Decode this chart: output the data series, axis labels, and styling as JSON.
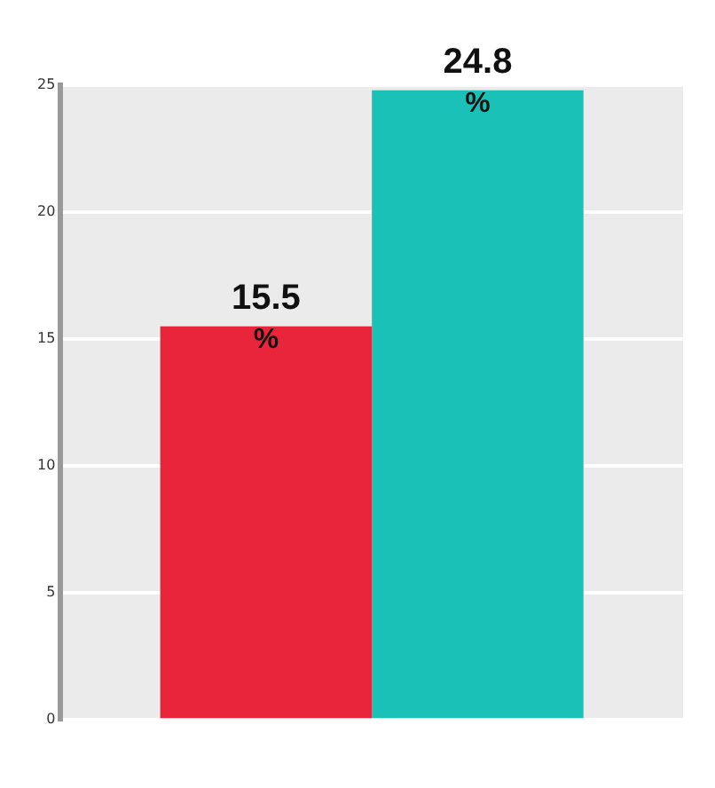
{
  "chart_data": {
    "type": "bar",
    "categories": [
      null
    ],
    "series": [
      {
        "color": "#e8253b",
        "values": [
          15.5
        ],
        "value_labels": [
          "15.5 %"
        ]
      },
      {
        "color": "#1ac1b6",
        "values": [
          24.8
        ],
        "value_labels": [
          "24.8 %"
        ]
      }
    ],
    "ylim": [
      0,
      25
    ],
    "yticks": [
      0,
      5,
      10,
      15,
      20,
      25
    ],
    "grid": "y",
    "legend": false
  }
}
